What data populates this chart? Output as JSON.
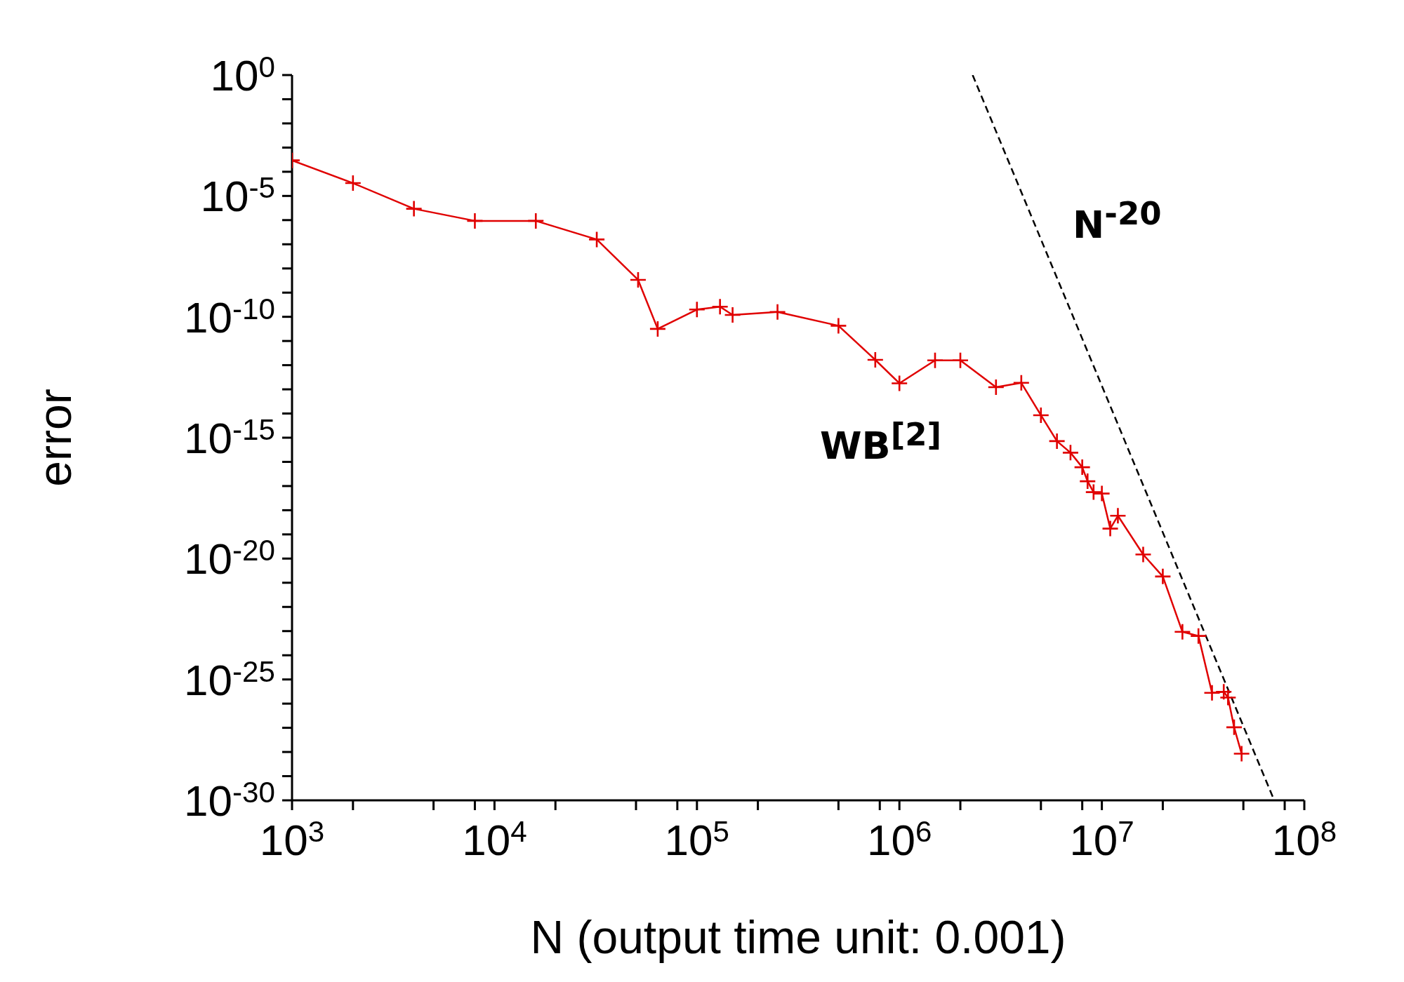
{
  "chart_data": {
    "type": "line",
    "xlabel": "N (output time unit: 0.001)",
    "ylabel": "error",
    "log": "xy",
    "legend": false,
    "grid": false,
    "annotations": [
      "WB$^{[2]}$",
      "N$^{-20}$"
    ],
    "xlim": [
      1000,
      100000000
    ],
    "ylim": [
      1e-30,
      1
    ],
    "xticks": [
      {
        "value": 1000,
        "label": "10$^{3}$"
      },
      {
        "value": 2000,
        "label": null
      },
      {
        "value": 5000,
        "label": null
      },
      {
        "value": 8000,
        "label": null
      },
      {
        "value": 10000,
        "label": "10$^{4}$"
      },
      {
        "value": 20000,
        "label": null
      },
      {
        "value": 50000,
        "label": null
      },
      {
        "value": 80000,
        "label": null
      },
      {
        "value": 100000,
        "label": "10$^{5}$"
      },
      {
        "value": 200000,
        "label": null
      },
      {
        "value": 500000,
        "label": null
      },
      {
        "value": 800000,
        "label": null
      },
      {
        "value": 1000000,
        "label": "10$^{6}$"
      },
      {
        "value": 2000000,
        "label": null
      },
      {
        "value": 5000000,
        "label": null
      },
      {
        "value": 8000000,
        "label": null
      },
      {
        "value": 10000000,
        "label": "10$^{7}$"
      },
      {
        "value": 20000000,
        "label": null
      },
      {
        "value": 50000000,
        "label": null
      },
      {
        "value": 80000000,
        "label": null
      },
      {
        "value": 100000000,
        "label": "10$^{8}$"
      }
    ],
    "yticks": [
      {
        "value": 1e-30,
        "label": "10$^{-30}$"
      },
      {
        "value": 1e-29,
        "label": null
      },
      {
        "value": 1e-28,
        "label": null
      },
      {
        "value": 1e-27,
        "label": null
      },
      {
        "value": 1e-26,
        "label": null
      },
      {
        "value": 1e-25,
        "label": "10$^{-25}$"
      },
      {
        "value": 1e-24,
        "label": null
      },
      {
        "value": 1e-23,
        "label": null
      },
      {
        "value": 1e-22,
        "label": null
      },
      {
        "value": 1e-21,
        "label": null
      },
      {
        "value": 1e-20,
        "label": "10$^{-20}$"
      },
      {
        "value": 1e-19,
        "label": null
      },
      {
        "value": 1e-18,
        "label": null
      },
      {
        "value": 1e-17,
        "label": null
      },
      {
        "value": 1e-16,
        "label": null
      },
      {
        "value": 1e-15,
        "label": "10$^{-15}$"
      },
      {
        "value": 1e-14,
        "label": null
      },
      {
        "value": 1e-13,
        "label": null
      },
      {
        "value": 1e-12,
        "label": null
      },
      {
        "value": 1e-11,
        "label": null
      },
      {
        "value": 1e-10,
        "label": "10$^{-10}$"
      },
      {
        "value": 1e-09,
        "label": null
      },
      {
        "value": 1e-08,
        "label": null
      },
      {
        "value": 1e-07,
        "label": null
      },
      {
        "value": 1e-06,
        "label": null
      },
      {
        "value": 1e-05,
        "label": "10$^{-5}$"
      },
      {
        "value": 0.0001,
        "label": null
      },
      {
        "value": 0.001,
        "label": null
      },
      {
        "value": 0.01,
        "label": null
      },
      {
        "value": 0.1,
        "label": null
      },
      {
        "value": 1,
        "label": "10$^{0}$"
      }
    ],
    "series": [
      {
        "color": "#e00000",
        "marker": "cross",
        "line_style": "solid",
        "x": [
          1000,
          2000,
          4000,
          8000,
          16000,
          32000,
          51200,
          64000,
          100000,
          130000,
          150000,
          250000,
          500000,
          760000,
          1000000,
          1500000,
          2000000,
          3000000,
          4000000,
          5000000,
          6000000,
          7000000,
          8000000,
          8500000,
          9100000,
          10000000,
          11000000,
          12000000,
          16000000,
          20000000,
          25000000,
          30000000,
          35000000,
          40000000,
          42000000,
          45000000,
          49000000
        ],
        "values": [
          0.000295,
          3.39e-05,
          2.95e-06,
          9.3e-07,
          9.3e-07,
          1.58e-07,
          3.39e-09,
          3.16e-11,
          2e-10,
          2.63e-10,
          1.2e-10,
          1.58e-10,
          4.27e-11,
          1.66e-12,
          1.78e-13,
          1.58e-12,
          1.58e-12,
          1.23e-13,
          1.86e-13,
          8.5e-15,
          7.2e-16,
          2.4e-16,
          6e-17,
          1.58e-17,
          5.6e-18,
          4.9e-18,
          1.74e-19,
          5.9e-19,
          1.48e-20,
          1.82e-21,
          9.3e-24,
          6.3e-24,
          2.8e-26,
          3.1e-26,
          1.78e-26,
          1.05e-27,
          8.5e-29
        ]
      },
      {
        "color": "#000000",
        "marker": "none",
        "line_style": "dashed",
        "x": [
          2300000,
          71000000
        ],
        "values": [
          1,
          1e-30
        ]
      }
    ]
  }
}
